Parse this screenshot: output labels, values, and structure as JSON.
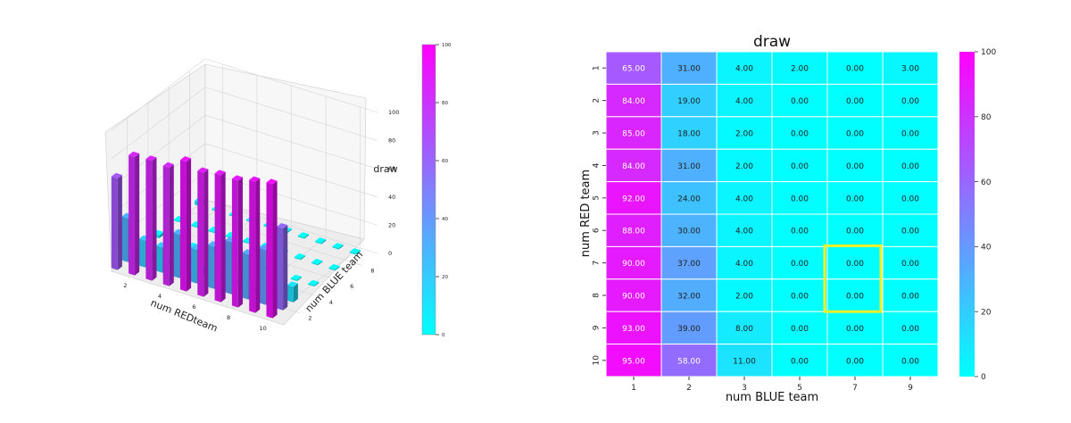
{
  "chart_data": [
    {
      "type": "bar3d",
      "xlabel": "num REDteam",
      "ylabel": "num BLUE team",
      "zlabel": "draw",
      "x_ticks": [
        "2",
        "4",
        "6",
        "8",
        "10"
      ],
      "y_ticks": [
        "2",
        "4",
        "6",
        "8"
      ],
      "z_ticks": [
        "0",
        "20",
        "40",
        "60",
        "80",
        "100"
      ],
      "zlim": [
        0,
        100
      ],
      "colorbar_ticks": [
        "0",
        "20",
        "40",
        "60",
        "80",
        "100"
      ],
      "colormap": "cool",
      "grid": true
    },
    {
      "type": "heatmap",
      "title": "draw",
      "xlabel": "num BLUE team",
      "ylabel": "num RED team",
      "x_categories": [
        "1",
        "2",
        "3",
        "5",
        "7",
        "9"
      ],
      "y_categories": [
        "1",
        "2",
        "3",
        "4",
        "5",
        "6",
        "7",
        "8",
        "9",
        "10"
      ],
      "values": [
        [
          65,
          31,
          4,
          2,
          0,
          3
        ],
        [
          84,
          19,
          4,
          0,
          0,
          0
        ],
        [
          85,
          18,
          2,
          0,
          0,
          0
        ],
        [
          84,
          31,
          2,
          0,
          0,
          0
        ],
        [
          92,
          24,
          4,
          0,
          0,
          0
        ],
        [
          88,
          30,
          4,
          0,
          0,
          0
        ],
        [
          90,
          37,
          4,
          0,
          0,
          0
        ],
        [
          90,
          32,
          2,
          0,
          0,
          0
        ],
        [
          93,
          39,
          8,
          0,
          0,
          0
        ],
        [
          95,
          58,
          11,
          0,
          0,
          0
        ]
      ],
      "labels": [
        [
          "65.00",
          "31.00",
          "4.00",
          "2.00",
          "0.00",
          "3.00"
        ],
        [
          "84.00",
          "19.00",
          "4.00",
          "0.00",
          "0.00",
          "0.00"
        ],
        [
          "85.00",
          "18.00",
          "2.00",
          "0.00",
          "0.00",
          "0.00"
        ],
        [
          "84.00",
          "31.00",
          "2.00",
          "0.00",
          "0.00",
          "0.00"
        ],
        [
          "92.00",
          "24.00",
          "4.00",
          "0.00",
          "0.00",
          "0.00"
        ],
        [
          "88.00",
          "30.00",
          "4.00",
          "0.00",
          "0.00",
          "0.00"
        ],
        [
          "90.00",
          "37.00",
          "4.00",
          "0.00",
          "0.00",
          "0.00"
        ],
        [
          "90.00",
          "32.00",
          "2.00",
          "0.00",
          "0.00",
          "0.00"
        ],
        [
          "93.00",
          "39.00",
          "8.00",
          "0.00",
          "0.00",
          "0.00"
        ],
        [
          "95.00",
          "58.00",
          "11.00",
          "0.00",
          "0.00",
          "0.00"
        ]
      ],
      "vmin": 0,
      "vmax": 100,
      "colorbar_ticks": [
        "0",
        "20",
        "40",
        "60",
        "80",
        "100"
      ],
      "colormap": "cool",
      "highlight": {
        "rows": [
          "7",
          "8"
        ],
        "cols": [
          "7"
        ],
        "color": "#ecf02a"
      }
    }
  ],
  "colors": {
    "cmap_low": "#00ffff",
    "cmap_high": "#ff00ff"
  }
}
